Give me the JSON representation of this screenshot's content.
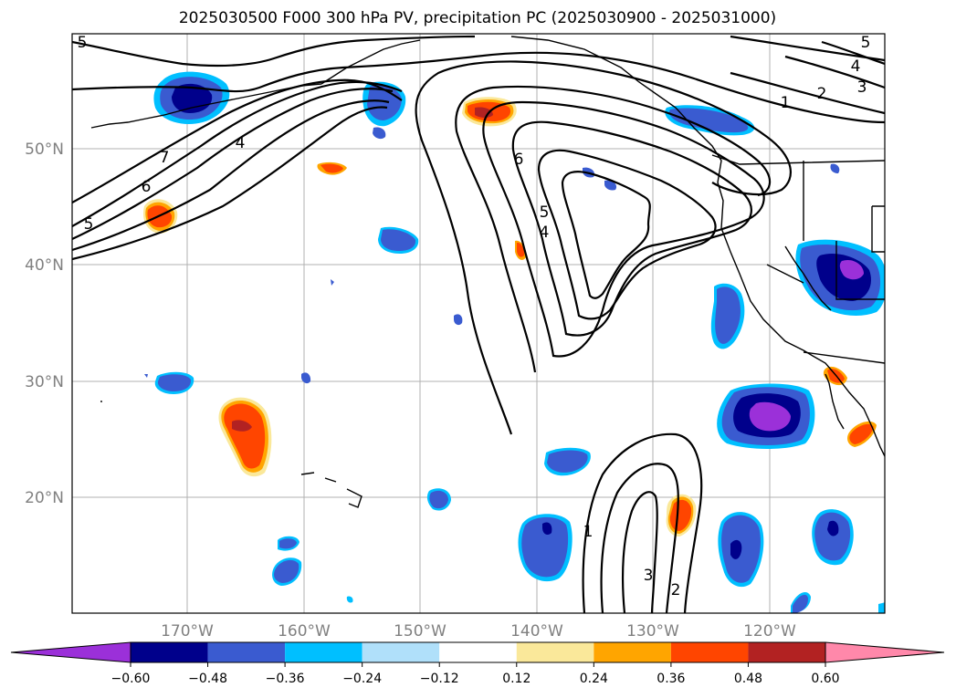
{
  "title": "2025030500 F000 300 hPa PV, precipitation PC (2025030900 - 2025031000)",
  "lat_labels": [
    "50°N",
    "40°N",
    "30°N",
    "20°N"
  ],
  "lon_labels": [
    "170°W",
    "160°W",
    "150°W",
    "140°W",
    "130°W",
    "120°W"
  ],
  "map": {
    "region": "North Pacific / western North America",
    "lon_range": [
      -180,
      -110
    ],
    "lat_range": [
      10,
      60
    ],
    "gridlines": true
  },
  "pv_contour_labels": [
    "1",
    "2",
    "3",
    "4",
    "5",
    "6",
    "7"
  ],
  "colorbar": {
    "ticks": [
      "−0.60",
      "−0.48",
      "−0.36",
      "−0.24",
      "−0.12",
      "0.12",
      "0.24",
      "0.36",
      "0.48",
      "0.60"
    ],
    "colors": [
      "#9b30d9",
      "#00008b",
      "#3a5bd0",
      "#00bfff",
      "#b0e0fa",
      "#ffffff",
      "#fae89a",
      "#ffa500",
      "#ff4500",
      "#b22222",
      "#ff88aa"
    ],
    "extend": "both"
  }
}
